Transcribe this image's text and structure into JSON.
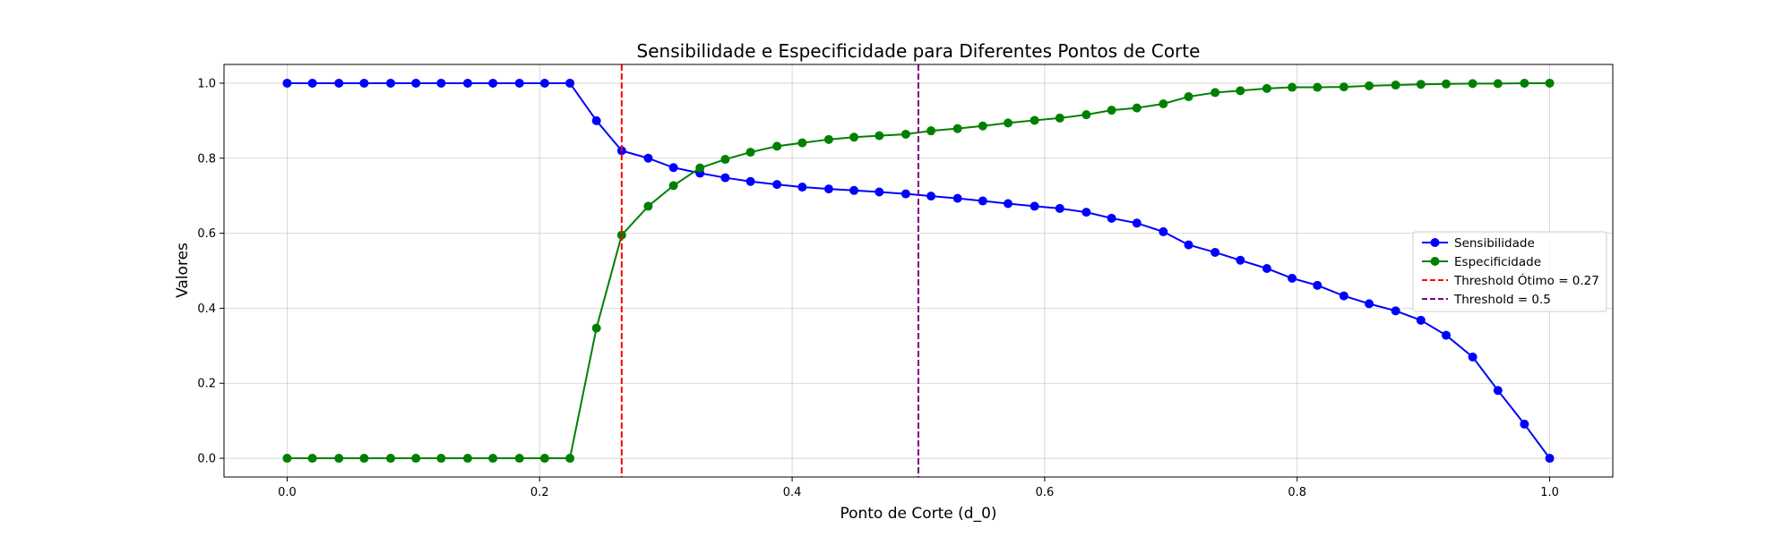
{
  "chart_data": {
    "type": "line",
    "title": "Sensibilidade e Especificidade para Diferentes Pontos de Corte",
    "xlabel": "Ponto de Corte (d_0)",
    "ylabel": "Valores",
    "xlim": [
      -0.05,
      1.05
    ],
    "ylim": [
      -0.05,
      1.05
    ],
    "xticks": [
      0.0,
      0.2,
      0.4,
      0.6,
      0.8,
      1.0
    ],
    "xtick_labels": [
      "0.0",
      "0.2",
      "0.4",
      "0.6",
      "0.8",
      "1.0"
    ],
    "yticks": [
      0.0,
      0.2,
      0.4,
      0.6,
      0.8,
      1.0
    ],
    "ytick_labels": [
      "0.0",
      "0.2",
      "0.4",
      "0.6",
      "0.8",
      "1.0"
    ],
    "grid": true,
    "legend_position": "center-right",
    "x": [
      0.0,
      0.02,
      0.041,
      0.061,
      0.082,
      0.102,
      0.122,
      0.143,
      0.163,
      0.184,
      0.204,
      0.224,
      0.245,
      0.265,
      0.286,
      0.306,
      0.327,
      0.347,
      0.367,
      0.388,
      0.408,
      0.429,
      0.449,
      0.469,
      0.49,
      0.51,
      0.531,
      0.551,
      0.571,
      0.592,
      0.612,
      0.633,
      0.653,
      0.673,
      0.694,
      0.714,
      0.735,
      0.755,
      0.776,
      0.796,
      0.816,
      0.837,
      0.857,
      0.878,
      0.898,
      0.918,
      0.939,
      0.959,
      0.98,
      1.0
    ],
    "series": [
      {
        "name": "Sensibilidade",
        "color": "#0000ff",
        "marker": "circle",
        "values": [
          1.0,
          1.0,
          1.0,
          1.0,
          1.0,
          1.0,
          1.0,
          1.0,
          1.0,
          1.0,
          1.0,
          1.0,
          0.9,
          0.82,
          0.8,
          0.775,
          0.76,
          0.748,
          0.738,
          0.73,
          0.723,
          0.718,
          0.714,
          0.71,
          0.705,
          0.699,
          0.693,
          0.686,
          0.679,
          0.672,
          0.666,
          0.656,
          0.64,
          0.627,
          0.604,
          0.569,
          0.549,
          0.528,
          0.506,
          0.48,
          0.461,
          0.433,
          0.412,
          0.393,
          0.368,
          0.328,
          0.27,
          0.181,
          0.091,
          0.0
        ]
      },
      {
        "name": "Especificidade",
        "color": "#008000",
        "marker": "circle",
        "values": [
          0.0,
          0.0,
          0.0,
          0.0,
          0.0,
          0.0,
          0.0,
          0.0,
          0.0,
          0.0,
          0.0,
          0.0,
          0.347,
          0.595,
          0.672,
          0.727,
          0.774,
          0.797,
          0.816,
          0.832,
          0.841,
          0.85,
          0.856,
          0.86,
          0.864,
          0.873,
          0.879,
          0.886,
          0.894,
          0.901,
          0.907,
          0.916,
          0.928,
          0.934,
          0.945,
          0.964,
          0.975,
          0.98,
          0.986,
          0.989,
          0.989,
          0.99,
          0.993,
          0.995,
          0.997,
          0.998,
          0.999,
          0.999,
          1.0,
          1.0
        ]
      }
    ],
    "vlines": [
      {
        "label": "Threshold Ótimo = 0.27",
        "x": 0.265,
        "color": "#ff0000",
        "style": "dashed"
      },
      {
        "label": "Threshold = 0.5",
        "x": 0.5,
        "color": "#800080",
        "style": "dashed"
      }
    ]
  }
}
